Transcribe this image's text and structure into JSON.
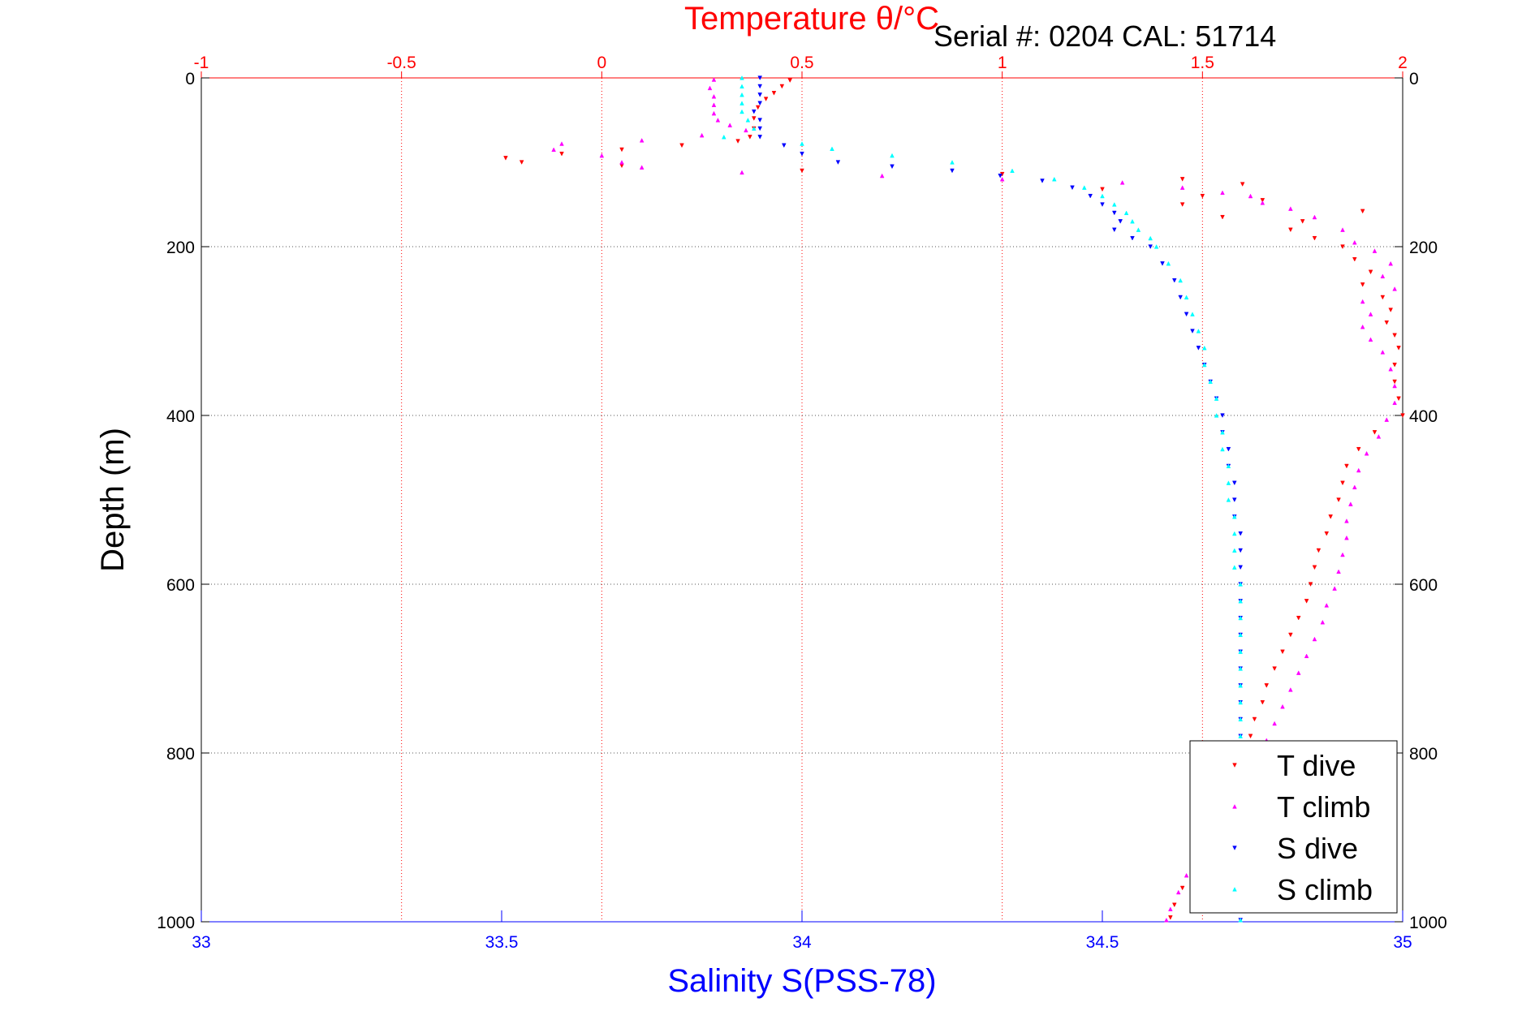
{
  "header": {
    "title": "Temperature θ/°C",
    "serial": "Serial #: 0204   CAL: 51714"
  },
  "colors": {
    "t_dive": "#ff0000",
    "t_climb": "#ff00ff",
    "s_dive": "#0000ff",
    "s_climb": "#00ffff",
    "temp_axis": "#ff0000",
    "sal_axis": "#0000ff",
    "grid": "#555555"
  },
  "chart_data": {
    "type": "scatter",
    "title": "Temperature θ/°C",
    "xlabel": "Salinity S(PSS-78)",
    "ylabel": "Depth (m)",
    "x_top_ticks": [
      "-1",
      "-0.5",
      "0",
      "0.5",
      "1",
      "1.5",
      "2"
    ],
    "x_top_lim": [
      -1,
      2
    ],
    "x_bottom_ticks": [
      "33",
      "33.5",
      "34",
      "34.5",
      "35"
    ],
    "x_bottom_lim": [
      33,
      35
    ],
    "y_ticks": [
      "0",
      "200",
      "400",
      "600",
      "800",
      "1000"
    ],
    "ylim": [
      0,
      1000
    ],
    "y_reversed": true,
    "grid": true,
    "legend_position": "bottom-right",
    "series": [
      {
        "name": "T dive",
        "axis": "temperature",
        "color": "#ff0000",
        "marker": "triangle-down",
        "points": [
          [
            0.47,
            3
          ],
          [
            0.45,
            10
          ],
          [
            0.43,
            18
          ],
          [
            0.41,
            25
          ],
          [
            0.39,
            35
          ],
          [
            0.38,
            48
          ],
          [
            0.38,
            60
          ],
          [
            0.37,
            70
          ],
          [
            0.34,
            75
          ],
          [
            0.2,
            80
          ],
          [
            0.05,
            85
          ],
          [
            -0.1,
            90
          ],
          [
            -0.24,
            95
          ],
          [
            -0.2,
            100
          ],
          [
            0.05,
            104
          ],
          [
            0.5,
            110
          ],
          [
            1.0,
            114
          ],
          [
            1.45,
            120
          ],
          [
            1.6,
            126
          ],
          [
            1.25,
            132
          ],
          [
            1.5,
            140
          ],
          [
            1.65,
            145
          ],
          [
            1.45,
            150
          ],
          [
            1.9,
            158
          ],
          [
            1.55,
            165
          ],
          [
            1.75,
            170
          ],
          [
            1.72,
            180
          ],
          [
            1.78,
            190
          ],
          [
            1.85,
            200
          ],
          [
            1.88,
            215
          ],
          [
            1.92,
            230
          ],
          [
            1.9,
            245
          ],
          [
            1.95,
            260
          ],
          [
            1.97,
            275
          ],
          [
            1.96,
            290
          ],
          [
            1.98,
            305
          ],
          [
            1.99,
            320
          ],
          [
            1.98,
            340
          ],
          [
            1.98,
            360
          ],
          [
            1.99,
            380
          ],
          [
            2.0,
            400
          ],
          [
            1.93,
            420
          ],
          [
            1.89,
            440
          ],
          [
            1.86,
            460
          ],
          [
            1.85,
            480
          ],
          [
            1.84,
            500
          ],
          [
            1.82,
            520
          ],
          [
            1.81,
            540
          ],
          [
            1.79,
            560
          ],
          [
            1.78,
            580
          ],
          [
            1.77,
            600
          ],
          [
            1.76,
            620
          ],
          [
            1.74,
            640
          ],
          [
            1.72,
            660
          ],
          [
            1.7,
            680
          ],
          [
            1.68,
            700
          ],
          [
            1.66,
            720
          ],
          [
            1.65,
            740
          ],
          [
            1.63,
            760
          ],
          [
            1.62,
            780
          ],
          [
            1.61,
            800
          ],
          [
            1.6,
            820
          ],
          [
            1.59,
            840
          ],
          [
            1.58,
            860
          ],
          [
            1.56,
            880
          ],
          [
            1.54,
            900
          ],
          [
            1.52,
            920
          ],
          [
            1.48,
            940
          ],
          [
            1.45,
            960
          ],
          [
            1.43,
            980
          ],
          [
            1.42,
            995
          ]
        ]
      },
      {
        "name": "T climb",
        "axis": "temperature",
        "color": "#ff00ff",
        "marker": "triangle-up",
        "points": [
          [
            0.28,
            2
          ],
          [
            0.27,
            12
          ],
          [
            0.28,
            22
          ],
          [
            0.28,
            32
          ],
          [
            0.28,
            42
          ],
          [
            0.29,
            50
          ],
          [
            0.32,
            56
          ],
          [
            0.36,
            62
          ],
          [
            0.25,
            68
          ],
          [
            0.1,
            74
          ],
          [
            -0.1,
            78
          ],
          [
            -0.12,
            85
          ],
          [
            0.0,
            92
          ],
          [
            0.05,
            100
          ],
          [
            0.1,
            106
          ],
          [
            0.35,
            112
          ],
          [
            0.7,
            116
          ],
          [
            1.0,
            120
          ],
          [
            1.3,
            124
          ],
          [
            1.45,
            130
          ],
          [
            1.55,
            136
          ],
          [
            1.62,
            140
          ],
          [
            1.65,
            148
          ],
          [
            1.72,
            155
          ],
          [
            1.78,
            165
          ],
          [
            1.85,
            180
          ],
          [
            1.88,
            195
          ],
          [
            1.93,
            205
          ],
          [
            1.97,
            220
          ],
          [
            1.95,
            235
          ],
          [
            1.98,
            250
          ],
          [
            1.9,
            265
          ],
          [
            1.92,
            280
          ],
          [
            1.9,
            295
          ],
          [
            1.92,
            310
          ],
          [
            1.95,
            325
          ],
          [
            1.97,
            345
          ],
          [
            1.98,
            365
          ],
          [
            1.98,
            385
          ],
          [
            1.96,
            405
          ],
          [
            1.94,
            425
          ],
          [
            1.91,
            445
          ],
          [
            1.89,
            465
          ],
          [
            1.88,
            485
          ],
          [
            1.87,
            505
          ],
          [
            1.86,
            525
          ],
          [
            1.86,
            545
          ],
          [
            1.85,
            565
          ],
          [
            1.84,
            585
          ],
          [
            1.83,
            605
          ],
          [
            1.81,
            625
          ],
          [
            1.8,
            645
          ],
          [
            1.78,
            665
          ],
          [
            1.76,
            685
          ],
          [
            1.74,
            705
          ],
          [
            1.72,
            725
          ],
          [
            1.7,
            745
          ],
          [
            1.68,
            765
          ],
          [
            1.66,
            785
          ],
          [
            1.64,
            805
          ],
          [
            1.62,
            825
          ],
          [
            1.6,
            845
          ],
          [
            1.58,
            865
          ],
          [
            1.55,
            885
          ],
          [
            1.52,
            905
          ],
          [
            1.49,
            925
          ],
          [
            1.46,
            945
          ],
          [
            1.44,
            965
          ],
          [
            1.42,
            985
          ],
          [
            1.41,
            998
          ]
        ]
      },
      {
        "name": "S dive",
        "axis": "salinity",
        "color": "#0000ff",
        "marker": "triangle-down",
        "points": [
          [
            33.93,
            0
          ],
          [
            33.93,
            10
          ],
          [
            33.93,
            20
          ],
          [
            33.93,
            30
          ],
          [
            33.92,
            40
          ],
          [
            33.93,
            50
          ],
          [
            33.93,
            60
          ],
          [
            33.93,
            70
          ],
          [
            33.97,
            80
          ],
          [
            34.0,
            90
          ],
          [
            34.06,
            100
          ],
          [
            34.15,
            105
          ],
          [
            34.25,
            110
          ],
          [
            34.33,
            116
          ],
          [
            34.4,
            122
          ],
          [
            34.45,
            130
          ],
          [
            34.48,
            140
          ],
          [
            34.5,
            150
          ],
          [
            34.52,
            160
          ],
          [
            34.53,
            170
          ],
          [
            34.52,
            180
          ],
          [
            34.55,
            190
          ],
          [
            34.58,
            200
          ],
          [
            34.6,
            220
          ],
          [
            34.62,
            240
          ],
          [
            34.63,
            260
          ],
          [
            34.64,
            280
          ],
          [
            34.65,
            300
          ],
          [
            34.66,
            320
          ],
          [
            34.67,
            340
          ],
          [
            34.68,
            360
          ],
          [
            34.69,
            380
          ],
          [
            34.7,
            400
          ],
          [
            34.7,
            420
          ],
          [
            34.71,
            440
          ],
          [
            34.71,
            460
          ],
          [
            34.72,
            480
          ],
          [
            34.72,
            500
          ],
          [
            34.72,
            520
          ],
          [
            34.73,
            540
          ],
          [
            34.73,
            560
          ],
          [
            34.73,
            580
          ],
          [
            34.73,
            600
          ],
          [
            34.73,
            620
          ],
          [
            34.73,
            640
          ],
          [
            34.73,
            660
          ],
          [
            34.73,
            680
          ],
          [
            34.73,
            700
          ],
          [
            34.73,
            720
          ],
          [
            34.73,
            740
          ],
          [
            34.73,
            760
          ],
          [
            34.73,
            780
          ],
          [
            34.73,
            800
          ],
          [
            34.73,
            820
          ],
          [
            34.73,
            840
          ],
          [
            34.73,
            860
          ],
          [
            34.73,
            880
          ],
          [
            34.73,
            900
          ],
          [
            34.73,
            920
          ],
          [
            34.73,
            940
          ],
          [
            34.73,
            960
          ],
          [
            34.73,
            980
          ],
          [
            34.73,
            998
          ]
        ]
      },
      {
        "name": "S climb",
        "axis": "salinity",
        "color": "#00ffff",
        "marker": "triangle-up",
        "points": [
          [
            33.9,
            0
          ],
          [
            33.9,
            10
          ],
          [
            33.9,
            20
          ],
          [
            33.9,
            30
          ],
          [
            33.9,
            40
          ],
          [
            33.91,
            50
          ],
          [
            33.92,
            60
          ],
          [
            33.87,
            70
          ],
          [
            34.0,
            78
          ],
          [
            34.05,
            84
          ],
          [
            34.15,
            92
          ],
          [
            34.25,
            100
          ],
          [
            34.35,
            110
          ],
          [
            34.42,
            120
          ],
          [
            34.47,
            130
          ],
          [
            34.5,
            140
          ],
          [
            34.52,
            150
          ],
          [
            34.54,
            160
          ],
          [
            34.55,
            170
          ],
          [
            34.56,
            180
          ],
          [
            34.58,
            190
          ],
          [
            34.59,
            200
          ],
          [
            34.61,
            220
          ],
          [
            34.63,
            240
          ],
          [
            34.64,
            260
          ],
          [
            34.65,
            280
          ],
          [
            34.66,
            300
          ],
          [
            34.67,
            320
          ],
          [
            34.67,
            340
          ],
          [
            34.68,
            360
          ],
          [
            34.69,
            380
          ],
          [
            34.69,
            400
          ],
          [
            34.7,
            420
          ],
          [
            34.7,
            440
          ],
          [
            34.71,
            460
          ],
          [
            34.71,
            480
          ],
          [
            34.71,
            500
          ],
          [
            34.72,
            520
          ],
          [
            34.72,
            540
          ],
          [
            34.72,
            560
          ],
          [
            34.72,
            580
          ],
          [
            34.73,
            600
          ],
          [
            34.73,
            620
          ],
          [
            34.73,
            640
          ],
          [
            34.73,
            660
          ],
          [
            34.73,
            680
          ],
          [
            34.73,
            700
          ],
          [
            34.73,
            720
          ],
          [
            34.73,
            740
          ],
          [
            34.73,
            760
          ],
          [
            34.73,
            780
          ],
          [
            34.73,
            800
          ],
          [
            34.73,
            820
          ],
          [
            34.73,
            840
          ],
          [
            34.73,
            860
          ],
          [
            34.73,
            880
          ],
          [
            34.73,
            900
          ],
          [
            34.73,
            920
          ],
          [
            34.73,
            940
          ],
          [
            34.73,
            960
          ],
          [
            34.73,
            980
          ],
          [
            34.73,
            998
          ]
        ]
      }
    ]
  }
}
